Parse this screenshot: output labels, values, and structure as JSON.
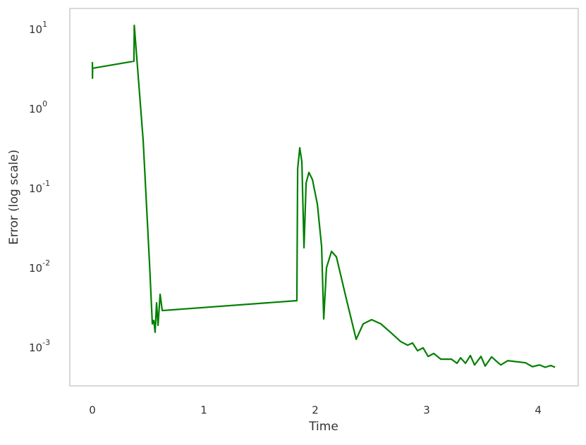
{
  "chart_data": {
    "type": "line",
    "xlabel": "Time",
    "ylabel": "Error (log scale)",
    "x": [
      0,
      0.001,
      0.002,
      0.373,
      0.376,
      0.456,
      0.513,
      0.538,
      0.551,
      0.563,
      0.576,
      0.589,
      0.608,
      0.627,
      1.835,
      1.842,
      1.861,
      1.88,
      1.899,
      1.918,
      1.943,
      1.975,
      2.019,
      2.057,
      2.076,
      2.101,
      2.146,
      2.19,
      2.272,
      2.367,
      2.43,
      2.506,
      2.589,
      2.684,
      2.766,
      2.829,
      2.873,
      2.918,
      2.968,
      3.013,
      3.063,
      3.127,
      3.222,
      3.272,
      3.304,
      3.348,
      3.392,
      3.43,
      3.487,
      3.525,
      3.582,
      3.62,
      3.665,
      3.728,
      3.886,
      3.949,
      4.013,
      4.063,
      4.114,
      4.152
    ],
    "series": [
      {
        "color": "#008000",
        "values": [
          3.9,
          2.45,
          3.26,
          4.0,
          11.3,
          0.4,
          0.0113,
          0.002,
          0.00221,
          0.00157,
          0.00368,
          0.00192,
          0.00471,
          0.00294,
          0.00392,
          0.177,
          0.326,
          0.217,
          0.0181,
          0.118,
          0.16,
          0.13,
          0.0638,
          0.0188,
          0.00231,
          0.0102,
          0.0163,
          0.0139,
          0.00452,
          0.00128,
          0.002,
          0.00226,
          0.002,
          0.00153,
          0.0012,
          0.00108,
          0.00115,
          0.00092,
          0.001,
          0.00078,
          0.00085,
          0.00072,
          0.00072,
          0.00064,
          0.00075,
          0.00064,
          0.0008,
          0.00061,
          0.00078,
          0.00059,
          0.00077,
          0.00069,
          0.00061,
          0.00069,
          0.00065,
          0.00058,
          0.00061,
          0.00057,
          0.0006,
          0.00057
        ]
      }
    ],
    "xlim": [
      -0.2025,
      4.36
    ],
    "xticks": [
      0,
      1,
      2,
      3,
      4
    ],
    "ylim": [
      0.000333,
      18.4
    ],
    "ylog": true,
    "yticks": [
      {
        "value": 10,
        "label": "10^1"
      },
      {
        "value": 1,
        "label": "10^0"
      },
      {
        "value": 0.1,
        "label": "10^-1"
      },
      {
        "value": 0.01,
        "label": "10^-2"
      },
      {
        "value": 0.001,
        "label": "10^-3"
      }
    ],
    "grid": false
  }
}
